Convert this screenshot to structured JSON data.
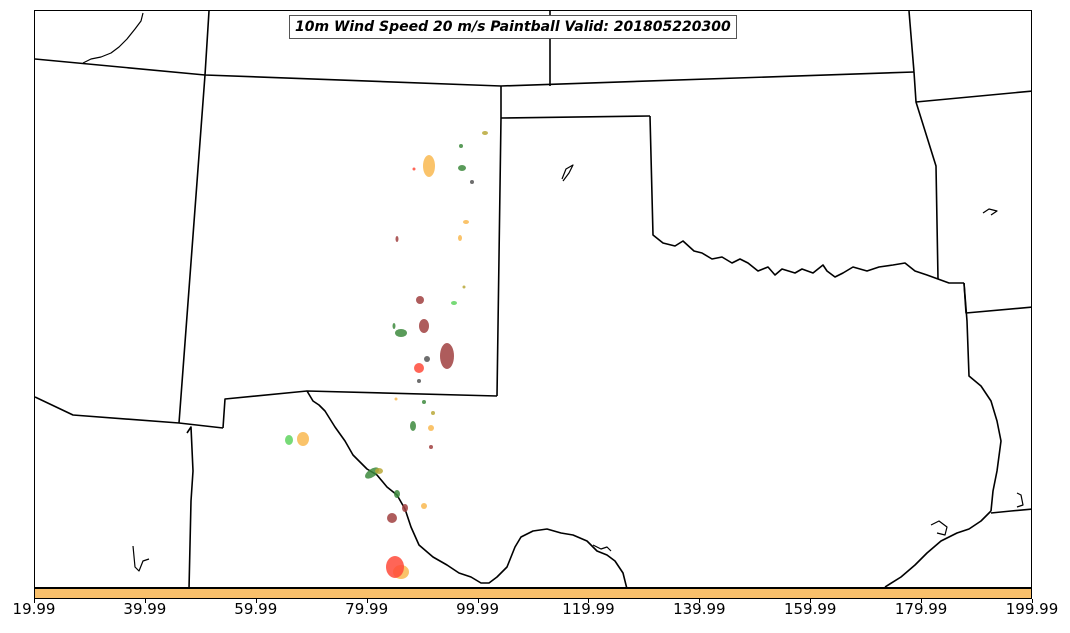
{
  "title": "10m Wind Speed 20 m/s Paintball Valid: 201805220300",
  "colorbar": {
    "color": "#f9c06b",
    "ticks": [
      "19.99",
      "39.99",
      "59.99",
      "79.99",
      "99.99",
      "119.99",
      "139.99",
      "159.99",
      "179.99",
      "199.99"
    ]
  },
  "paintball_colors": {
    "orange": "#f9b850",
    "dark_red": "#a04040",
    "green": "#3d8a3d",
    "light_green": "#5fd45f",
    "red": "#ff4a3a",
    "olive": "#b8a838",
    "dark_gray": "#555555"
  }
}
